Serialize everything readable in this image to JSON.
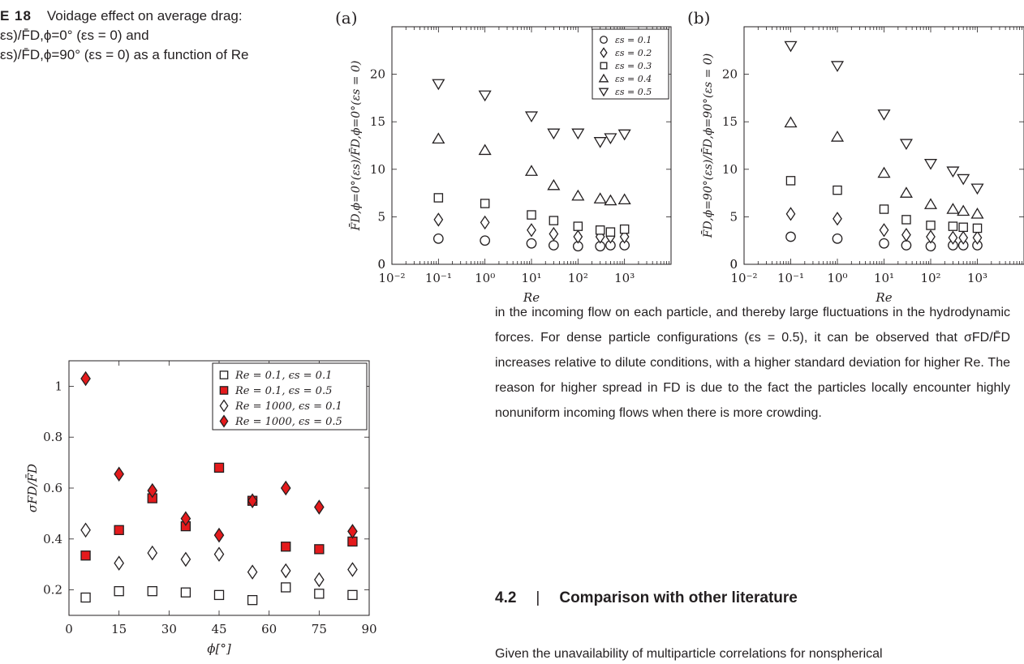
{
  "caption": {
    "label": "E 18",
    "title": "Voidage effect on average drag:",
    "line2": "εs)/F̄D,ϕ=0° (εs = 0) and",
    "line3": "εs)/F̄D,ϕ=90° (εs = 0) as a function of Re"
  },
  "body_text": {
    "paragraph1": "in the incoming flow on each particle, and thereby large fluctuations in the hydrodynamic forces. For dense particle configurations (ϵs = 0.5), it can be observed that σFD/F̄D increases relative to dilute conditions, with a higher standard deviation for higher Re. The reason for higher spread in FD is due to the fact the particles locally encounter highly nonuniform incoming flows when there is more crowding.",
    "section_number": "4.2",
    "section_sep": "|",
    "section_title": "Comparison with other literature",
    "paragraph2": "Given the unavailability of multiparticle correlations for nonspherical"
  },
  "chart_data": [
    {
      "panel": "(a)",
      "type": "scatter",
      "xscale": "log",
      "xlim": [
        0.01,
        10000
      ],
      "ylim": [
        0,
        25
      ],
      "xlabel": "Re",
      "ylabel": "F̄D,ϕ=0°(εs)/F̄D,ϕ=0°(εs = 0)",
      "xticks": [
        "10⁻²",
        "10⁻¹",
        "10⁰",
        "10¹",
        "10²",
        "10³"
      ],
      "yticks": [
        0,
        5,
        10,
        15,
        20
      ],
      "legend_position": "top-right",
      "x": [
        0.1,
        1,
        10,
        30,
        100,
        300,
        500,
        1000
      ],
      "series": [
        {
          "name": "εs = 0.1",
          "marker": "circle",
          "values": [
            2.7,
            2.5,
            2.2,
            2.0,
            1.9,
            1.9,
            2.0,
            2.0
          ]
        },
        {
          "name": "εs = 0.2",
          "marker": "diamond",
          "values": [
            4.7,
            4.4,
            3.6,
            3.2,
            2.9,
            2.9,
            2.9,
            2.9
          ]
        },
        {
          "name": "εs = 0.3",
          "marker": "square",
          "values": [
            7.0,
            6.4,
            5.2,
            4.6,
            4.0,
            3.6,
            3.4,
            3.7
          ]
        },
        {
          "name": "εs = 0.4",
          "marker": "triangle-up",
          "values": [
            13.2,
            12.0,
            9.8,
            8.3,
            7.2,
            6.9,
            6.7,
            6.8
          ]
        },
        {
          "name": "εs = 0.5",
          "marker": "triangle-down",
          "values": [
            19.0,
            17.8,
            15.6,
            13.8,
            13.8,
            12.9,
            13.3,
            13.7
          ]
        }
      ]
    },
    {
      "panel": "(b)",
      "type": "scatter",
      "xscale": "log",
      "xlim": [
        0.01,
        10000
      ],
      "ylim": [
        0,
        25
      ],
      "xlabel": "Re",
      "ylabel": "F̄D,ϕ=90°(εs)/F̄D,ϕ=90°(εs = 0)",
      "xticks": [
        "10⁻²",
        "10⁻¹",
        "10⁰",
        "10¹",
        "10²",
        "10³"
      ],
      "yticks": [
        0,
        5,
        10,
        15,
        20
      ],
      "x": [
        0.1,
        1,
        10,
        30,
        100,
        300,
        500,
        1000
      ],
      "series": [
        {
          "name": "εs = 0.1",
          "marker": "circle",
          "values": [
            2.9,
            2.7,
            2.2,
            2.0,
            1.9,
            2.0,
            2.0,
            2.0
          ]
        },
        {
          "name": "εs = 0.2",
          "marker": "diamond",
          "values": [
            5.3,
            4.8,
            3.6,
            3.1,
            2.9,
            2.8,
            2.8,
            2.8
          ]
        },
        {
          "name": "εs = 0.3",
          "marker": "square",
          "values": [
            8.8,
            7.8,
            5.8,
            4.7,
            4.1,
            4.0,
            3.9,
            3.8
          ]
        },
        {
          "name": "εs = 0.4",
          "marker": "triangle-up",
          "values": [
            14.9,
            13.4,
            9.6,
            7.5,
            6.3,
            5.8,
            5.6,
            5.3
          ]
        },
        {
          "name": "εs = 0.5",
          "marker": "triangle-down",
          "values": [
            23.0,
            20.9,
            15.8,
            12.7,
            10.6,
            9.8,
            9.0,
            8.0
          ]
        }
      ]
    },
    {
      "panel": "",
      "type": "scatter",
      "xlim": [
        0,
        90
      ],
      "ylim": [
        0.1,
        1.1
      ],
      "xlabel": "ϕ[°]",
      "ylabel": "σFD/F̄D",
      "xticks": [
        0,
        15,
        30,
        45,
        60,
        75,
        90
      ],
      "yticks": [
        0.2,
        0.4,
        0.6,
        0.8,
        1
      ],
      "legend_position": "top-right",
      "x": [
        5,
        15,
        25,
        35,
        45,
        55,
        65,
        75,
        85
      ],
      "series": [
        {
          "name": "Re = 0.1, ϵs = 0.1",
          "marker": "square",
          "fill": "#ffffff",
          "values": [
            0.17,
            0.195,
            0.195,
            0.19,
            0.18,
            0.16,
            0.21,
            0.185,
            0.18
          ]
        },
        {
          "name": "Re = 0.1, ϵs = 0.5",
          "marker": "square",
          "fill": "#e41a1c",
          "values": [
            0.335,
            0.435,
            0.56,
            0.45,
            0.68,
            0.55,
            0.37,
            0.36,
            0.39
          ]
        },
        {
          "name": "Re = 1000, ϵs = 0.1",
          "marker": "diamond",
          "fill": "#ffffff",
          "values": [
            0.435,
            0.305,
            0.345,
            0.32,
            0.34,
            0.27,
            0.275,
            0.24,
            0.28
          ]
        },
        {
          "name": "Re = 1000, ϵs = 0.5",
          "marker": "diamond",
          "fill": "#e41a1c",
          "values": [
            1.03,
            0.655,
            0.59,
            0.48,
            0.415,
            0.55,
            0.6,
            0.525,
            0.43
          ]
        }
      ]
    }
  ]
}
